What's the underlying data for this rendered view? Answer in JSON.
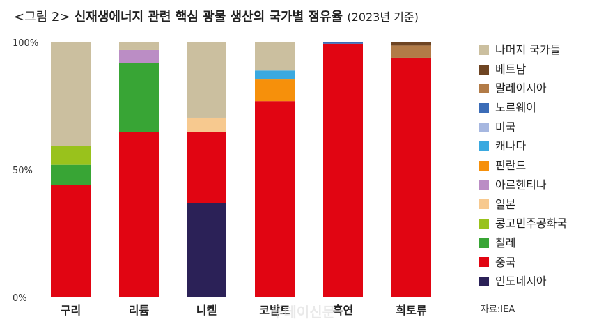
{
  "title": {
    "prefix": "<그림 2>",
    "main": "신재생에너지 관련 핵심 광물 생산의 국가별 점유율",
    "suffix": "(2023년 기준)"
  },
  "source": "자료:IEA",
  "watermark": "투데이신문",
  "chart_data": {
    "type": "bar",
    "stacked": true,
    "categories": [
      "구리",
      "리튬",
      "니켈",
      "코발트",
      "흑연",
      "희토류"
    ],
    "ylim": [
      0,
      100
    ],
    "yticks": [
      "0%",
      "50%",
      "100%"
    ],
    "legend_position": "right",
    "series": [
      {
        "name": "인도네시아",
        "color": "#2b2157",
        "values": [
          0,
          0,
          37,
          0,
          0,
          0
        ]
      },
      {
        "name": "중국",
        "color": "#e10512",
        "values": [
          44,
          65,
          28,
          77,
          99.5,
          94
        ]
      },
      {
        "name": "칠레",
        "color": "#38a535",
        "values": [
          8,
          27,
          0,
          0,
          0,
          0
        ]
      },
      {
        "name": "콩고민주공화국",
        "color": "#99c21c",
        "values": [
          7.5,
          0,
          0,
          0,
          0,
          0
        ]
      },
      {
        "name": "일본",
        "color": "#f7c98f",
        "values": [
          0,
          0,
          5.5,
          0,
          0,
          0
        ]
      },
      {
        "name": "아르헨티나",
        "color": "#bb8dc5",
        "values": [
          0,
          5,
          0,
          0,
          0,
          0
        ]
      },
      {
        "name": "핀란드",
        "color": "#f6900b",
        "values": [
          0,
          0,
          0,
          8.5,
          0,
          0
        ]
      },
      {
        "name": "캐나다",
        "color": "#3aa9e0",
        "values": [
          0,
          0,
          0,
          3.5,
          0,
          0
        ]
      },
      {
        "name": "미국",
        "color": "#a6b7e0",
        "values": [
          0,
          0,
          0,
          0,
          0,
          0
        ]
      },
      {
        "name": "노르웨이",
        "color": "#3b6cb7",
        "values": [
          0,
          0,
          0,
          0,
          0.5,
          0
        ]
      },
      {
        "name": "말레이시아",
        "color": "#b27b47",
        "values": [
          0,
          0,
          0,
          0,
          0,
          4.8
        ]
      },
      {
        "name": "베트남",
        "color": "#6e4422",
        "values": [
          0,
          0,
          0,
          0,
          0,
          1.2
        ]
      },
      {
        "name": "나머지 국가들",
        "color": "#cbbf9f",
        "values": [
          40.5,
          3,
          29.5,
          11,
          0,
          0
        ]
      }
    ]
  }
}
